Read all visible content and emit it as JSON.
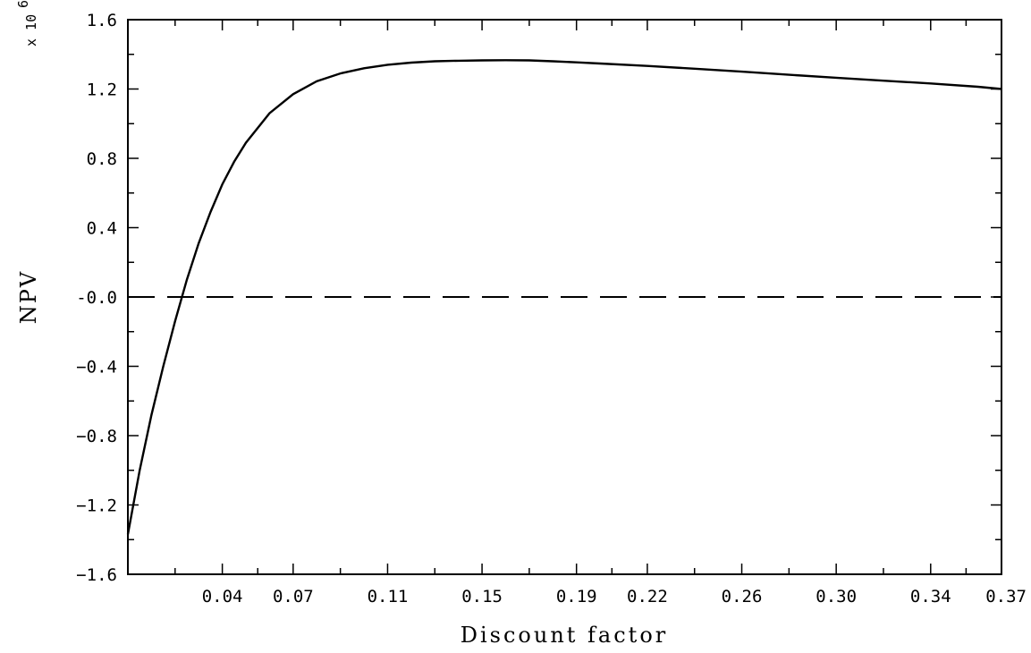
{
  "chart_data": {
    "type": "line",
    "xlabel": "Discount factor",
    "ylabel": "NPV",
    "y_multiplier": {
      "prefix": "x 10",
      "exponent": "6"
    },
    "xlim": [
      0.0,
      0.37
    ],
    "ylim": [
      -1.6,
      1.6
    ],
    "x_ticks": [
      0.04,
      0.07,
      0.11,
      0.15,
      0.19,
      0.22,
      0.26,
      0.3,
      0.34,
      0.37
    ],
    "x_tick_labels": [
      "0.04",
      "0.07",
      "0.11",
      "0.15",
      "0.19",
      "0.22",
      "0.26",
      "0.30",
      "0.34",
      "0.37"
    ],
    "y_ticks": [
      1.6,
      1.2,
      0.8,
      0.4,
      0.0,
      -0.4,
      -0.8,
      -1.2,
      -1.6
    ],
    "y_tick_labels": [
      "1.6",
      "1.2",
      "0.8",
      "0.4",
      "-0.0",
      "−0.4",
      "−0.8",
      "−1.2",
      "−1.6"
    ],
    "grid": false,
    "series": [
      {
        "style": "solid",
        "x": [
          0.0,
          0.005,
          0.01,
          0.015,
          0.02,
          0.025,
          0.03,
          0.035,
          0.04,
          0.045,
          0.05,
          0.06,
          0.07,
          0.08,
          0.09,
          0.1,
          0.11,
          0.12,
          0.13,
          0.14,
          0.15,
          0.16,
          0.17,
          0.18,
          0.19,
          0.2,
          0.22,
          0.24,
          0.26,
          0.28,
          0.3,
          0.32,
          0.34,
          0.36,
          0.37
        ],
        "y": [
          -1.37,
          -1.0,
          -0.68,
          -0.4,
          -0.14,
          0.1,
          0.31,
          0.49,
          0.65,
          0.78,
          0.89,
          1.06,
          1.17,
          1.245,
          1.29,
          1.32,
          1.34,
          1.352,
          1.36,
          1.363,
          1.365,
          1.366,
          1.365,
          1.36,
          1.354,
          1.347,
          1.333,
          1.317,
          1.3,
          1.282,
          1.265,
          1.248,
          1.232,
          1.213,
          1.2
        ]
      },
      {
        "style": "dashed",
        "x": [
          0.0,
          0.37
        ],
        "y": [
          0.0,
          0.0
        ]
      }
    ]
  }
}
